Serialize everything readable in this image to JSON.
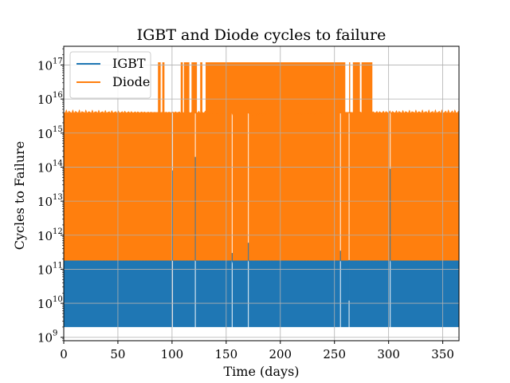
{
  "chart_data": {
    "type": "line",
    "title": "IGBT and Diode cycles to failure",
    "xlabel": "Time (days)",
    "ylabel": "Cycles to Failure",
    "xlim": [
      0,
      365
    ],
    "ylim_log10": [
      8.9,
      17.55
    ],
    "yscale": "log",
    "grid": true,
    "legend_position": "top-left",
    "x_ticks": [
      0,
      50,
      100,
      150,
      200,
      250,
      300,
      350
    ],
    "x_tick_labels": [
      "0",
      "50",
      "100",
      "150",
      "200",
      "250",
      "300",
      "350"
    ],
    "y_tick_exponents": [
      9,
      10,
      11,
      12,
      13,
      14,
      15,
      16,
      17
    ],
    "y_tick_base": "10",
    "series": [
      {
        "name": "IGBT",
        "color": "#1f77b4",
        "band_low": 2000000000.0,
        "band_high": 180000000000.0,
        "spikes": [
          {
            "x": 100.5,
            "y": 80000000000000.0
          },
          {
            "x": 121.5,
            "y": 200000000000000.0
          },
          {
            "x": 155.5,
            "y": 300000000000.0
          },
          {
            "x": 170.5,
            "y": 600000000000.0
          },
          {
            "x": 255.5,
            "y": 350000000000.0
          },
          {
            "x": 263.5,
            "y": 12000000000.0
          },
          {
            "x": 301.5,
            "y": 90000000000000.0
          }
        ],
        "gaps": [
          100.5,
          121.5,
          155.5,
          170.5,
          255.5,
          263.5,
          301.5
        ]
      },
      {
        "name": "Diode",
        "color": "#ff7f0e",
        "band_low": 180000000000.0,
        "band_high": 4000000000000000.0,
        "high_bursts": [
          [
            87,
            89.5
          ],
          [
            91,
            93
          ],
          [
            108,
            110
          ],
          [
            111,
            116
          ],
          [
            118,
            123
          ],
          [
            126,
            128
          ],
          [
            131,
            260
          ],
          [
            263.5,
            264.5
          ],
          [
            267,
            273.5
          ],
          [
            275,
            285
          ]
        ],
        "burst_level": 1.2e+17,
        "gaps": [
          100.5,
          121.5,
          155.5,
          170.5,
          255.5,
          263.5,
          301.5
        ]
      }
    ]
  }
}
